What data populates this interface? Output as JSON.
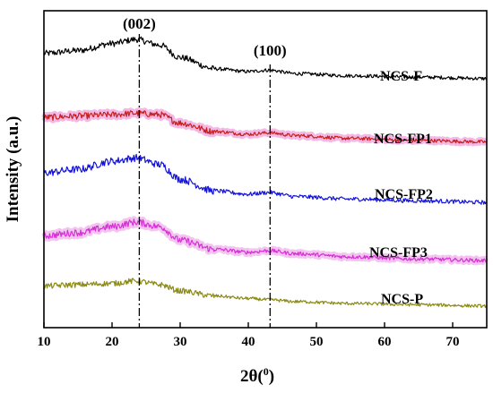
{
  "chart_data": {
    "type": "line",
    "xlabel": "2θ(",
    "xlabel_sup": "0",
    "xlabel_close": ")",
    "ylabel": "Intensity (a.u.)",
    "xlim": [
      10,
      75
    ],
    "xticks": [
      "10",
      "20",
      "30",
      "40",
      "50",
      "60",
      "70"
    ],
    "grid": false,
    "peak_labels": [
      {
        "label": "(002)",
        "x": 24
      },
      {
        "label": "(100)",
        "x": 43.2
      }
    ],
    "series": [
      {
        "name": "NCS-F",
        "color": "#000000",
        "halo": "",
        "peak_height": 14,
        "hump2": 3,
        "tail_level": 0,
        "x": [
          10,
          15,
          20,
          23.5,
          27,
          30,
          35,
          40,
          43,
          47,
          55,
          65,
          75
        ],
        "y": [
          0.62,
          0.66,
          0.76,
          0.82,
          0.74,
          0.56,
          0.4,
          0.36,
          0.38,
          0.33,
          0.3,
          0.28,
          0.26
        ]
      },
      {
        "name": "NCS-FP1",
        "color": "#c8201c",
        "halo": "#f0a0dc",
        "peak_height": 8,
        "hump2": 3,
        "tail_level": 0,
        "x": [
          10,
          15,
          20,
          23.5,
          27,
          30,
          35,
          40,
          43,
          47,
          55,
          65,
          75
        ],
        "y": [
          0.6,
          0.62,
          0.64,
          0.66,
          0.64,
          0.52,
          0.4,
          0.36,
          0.38,
          0.34,
          0.3,
          0.27,
          0.25
        ]
      },
      {
        "name": "NCS-FP2",
        "color": "#1414d8",
        "halo": "",
        "peak_height": 14,
        "hump2": 3,
        "tail_level": 0,
        "x": [
          10,
          15,
          20,
          23.5,
          27,
          30,
          35,
          40,
          43,
          47,
          55,
          65,
          75
        ],
        "y": [
          0.62,
          0.66,
          0.76,
          0.8,
          0.72,
          0.54,
          0.4,
          0.36,
          0.38,
          0.33,
          0.3,
          0.28,
          0.26
        ]
      },
      {
        "name": "NCS-FP3",
        "color": "#d630d6",
        "halo": "#f0b0ec",
        "peak_height": 10,
        "hump2": 3,
        "tail_level": 0,
        "x": [
          10,
          15,
          20,
          23.5,
          27,
          30,
          35,
          40,
          43,
          47,
          55,
          65,
          75
        ],
        "y": [
          0.58,
          0.62,
          0.7,
          0.76,
          0.7,
          0.52,
          0.4,
          0.36,
          0.38,
          0.34,
          0.3,
          0.27,
          0.25
        ]
      },
      {
        "name": "NCS-P",
        "color": "#8a8a14",
        "halo": "",
        "peak_height": 6,
        "hump2": 1,
        "tail_level": 0,
        "x": [
          10,
          15,
          20,
          23.5,
          27,
          30,
          35,
          40,
          43,
          47,
          55,
          65,
          75
        ],
        "y": [
          0.58,
          0.6,
          0.62,
          0.66,
          0.6,
          0.5,
          0.42,
          0.38,
          0.36,
          0.33,
          0.3,
          0.28,
          0.26
        ]
      }
    ]
  }
}
